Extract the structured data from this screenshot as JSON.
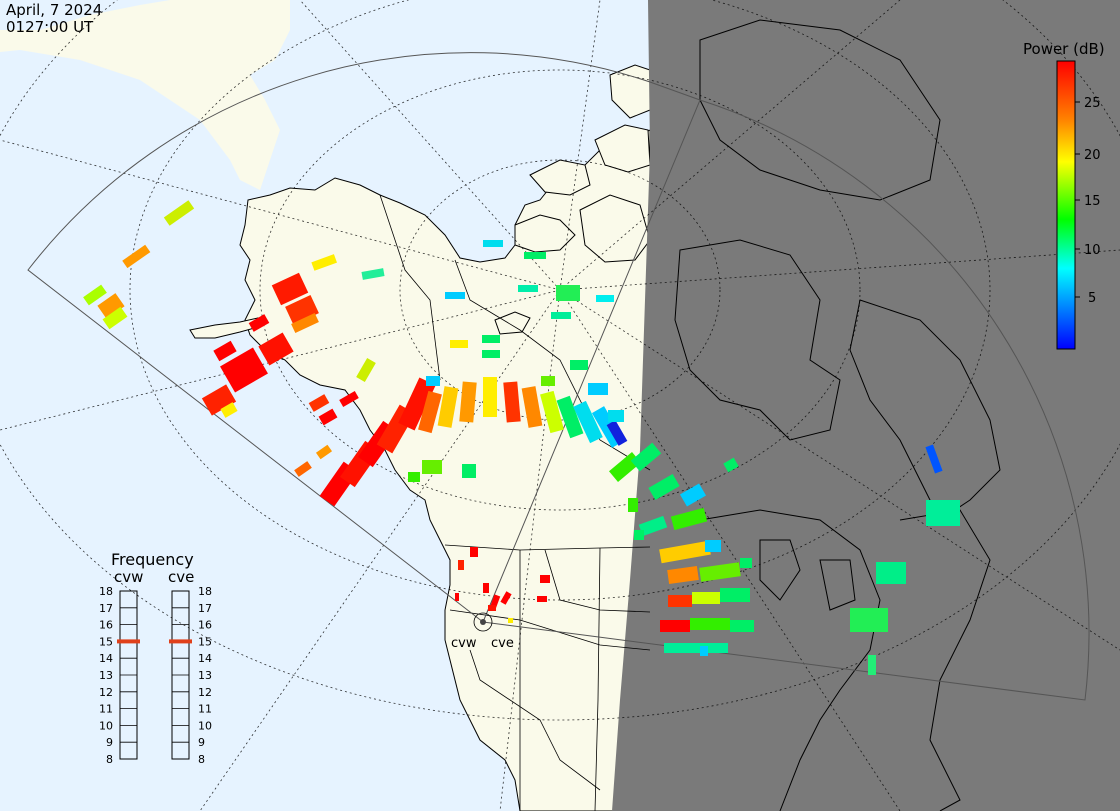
{
  "header": {
    "date": "April, 7 2024",
    "time": "0127:00 UT"
  },
  "colorbar": {
    "title": "Power (dB)",
    "ticks": [
      "25",
      "20",
      "15",
      "10",
      "5"
    ],
    "scale_colors": [
      "#ff0000",
      "#ff8000",
      "#ffff00",
      "#00ff00",
      "#00ffff",
      "#0000ff"
    ]
  },
  "frequency_panel": {
    "title": "Frequency",
    "radar_a_label": "cvw",
    "radar_b_label": "cve",
    "scale_labels": [
      "18",
      "17",
      "16",
      "15",
      "14",
      "13",
      "12",
      "11",
      "10",
      "9",
      "8"
    ],
    "radar_a_frequency": 15,
    "radar_b_frequency": 15,
    "marker_color": "#e0401a"
  },
  "site_labels": {
    "cvw": "cvw",
    "cve": "cve"
  },
  "colors": {
    "ocean": "#e6f3ff",
    "land": "#fafaea",
    "night": "#7a7a7a",
    "coast": "#000000"
  }
}
